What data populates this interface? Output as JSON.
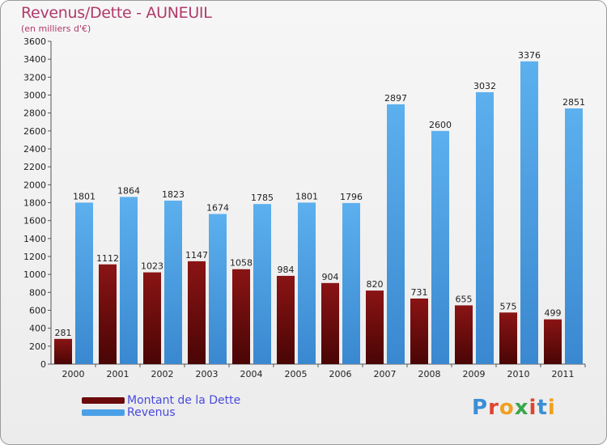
{
  "title": "Revenus/Dette - AUNEUIL",
  "subtitle": "(en milliers d'€)",
  "logo": {
    "letters": [
      "P",
      "r",
      "o",
      "x",
      "i",
      "t",
      "i"
    ],
    "colors": [
      "#3a8fd6",
      "#e0442f",
      "#f0a020",
      "#3aa64a",
      "#e0442f",
      "#3a8fd6",
      "#f0a020"
    ]
  },
  "legend": [
    {
      "label": "Montant de la Dette",
      "color": "#6b0a0a"
    },
    {
      "label": "Revenus",
      "color": "#4aa0e6"
    }
  ],
  "chart_data": {
    "type": "bar",
    "title": "Revenus/Dette - AUNEUIL",
    "ylabel": "(en milliers d'€)",
    "categories": [
      "2000",
      "2001",
      "2002",
      "2003",
      "2004",
      "2005",
      "2006",
      "2007",
      "2008",
      "2009",
      "2010",
      "2011"
    ],
    "ylim": [
      0,
      3600
    ],
    "ytick_step": 200,
    "grid": false,
    "series": [
      {
        "name": "Montant de la Dette",
        "color": "#6b0a0a",
        "values": [
          281,
          1112,
          1023,
          1147,
          1058,
          984,
          904,
          820,
          731,
          655,
          575,
          499
        ]
      },
      {
        "name": "Revenus",
        "color": "#4aa0e6",
        "values": [
          1801,
          1864,
          1823,
          1674,
          1785,
          1801,
          1796,
          2897,
          2600,
          3032,
          3376,
          2851
        ]
      }
    ]
  }
}
